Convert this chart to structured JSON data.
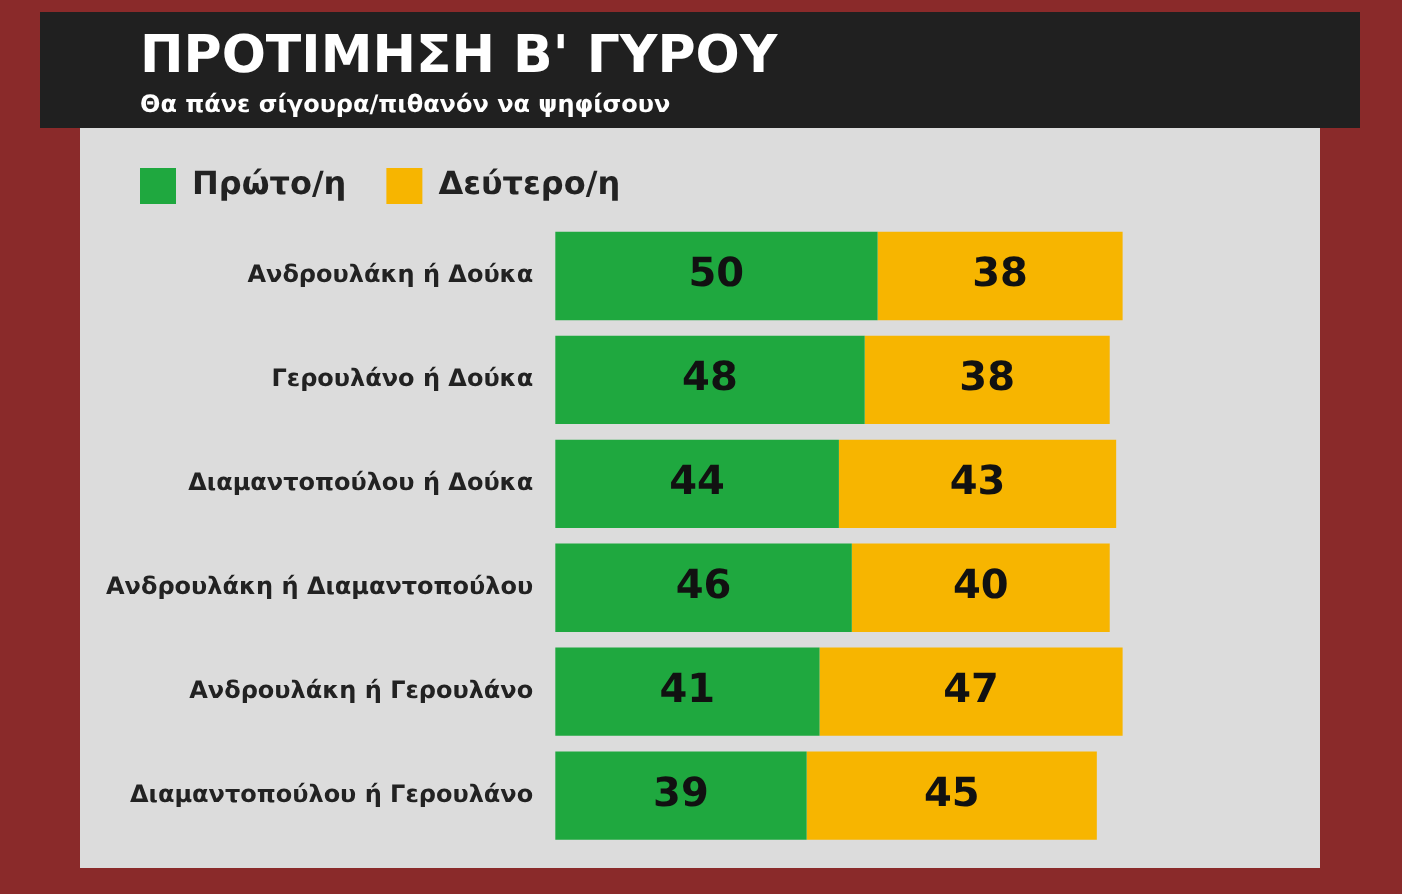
{
  "chart_data": {
    "type": "bar",
    "orientation": "horizontal",
    "stacked": true,
    "title": "ΠΡΟΤΙΜΗΣΗ Β' ΓΥΡΟΥ",
    "subtitle": "Θα πάνε σίγουρα/πιθανόν να ψηφίσουν",
    "categories": [
      "Ανδρουλάκη ή Δούκα",
      "Γερουλάνο ή Δούκα",
      "Διαμαντοπούλου ή Δούκα",
      "Ανδρουλάκη ή Διαμαντοπούλου",
      "Ανδρουλάκη ή Γερουλάνο",
      "Διαμαντοπούλου ή Γερουλάνο"
    ],
    "series": [
      {
        "name": "Πρώτο/η",
        "color": "#1fa83f",
        "values": [
          50,
          48,
          44,
          46,
          41,
          39
        ]
      },
      {
        "name": "Δεύτερο/η",
        "color": "#f7b500",
        "values": [
          38,
          38,
          43,
          40,
          47,
          45
        ]
      }
    ],
    "data_labels": true,
    "legend": "top left",
    "grid": false
  }
}
